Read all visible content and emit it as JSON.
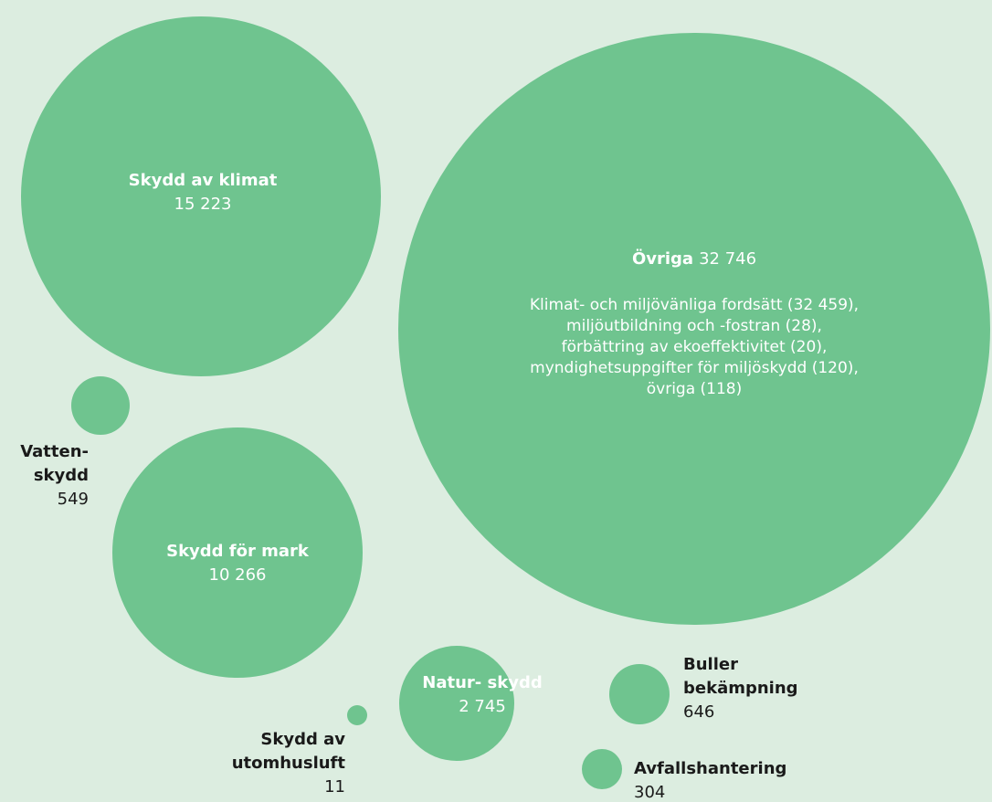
{
  "chart_data": {
    "type": "bubble",
    "categories": [
      "Skydd av klimat",
      "Övriga",
      "Vatten-\nskydd",
      "Skydd för mark",
      "Natur-\nskydd",
      "Buller\nbekämpning",
      "Skydd av\nutomhusluft",
      "Avfallshantering"
    ],
    "values": [
      15223,
      32746,
      549,
      10266,
      2745,
      646,
      11,
      304
    ],
    "value_labels": [
      "15 223",
      "32 746",
      "549",
      "10 266",
      "2 745",
      "646",
      "11",
      "304"
    ],
    "color": "#6fc48f",
    "annotation": [
      "Klimat- och miljövänliga fordsätt (32 459),",
      "miljöutbildning och -fostran (28),",
      "förbättring av ekoeffektivitet (20),",
      "myndighetsuppgifter för miljöskydd (120),",
      "övriga (118)"
    ]
  }
}
